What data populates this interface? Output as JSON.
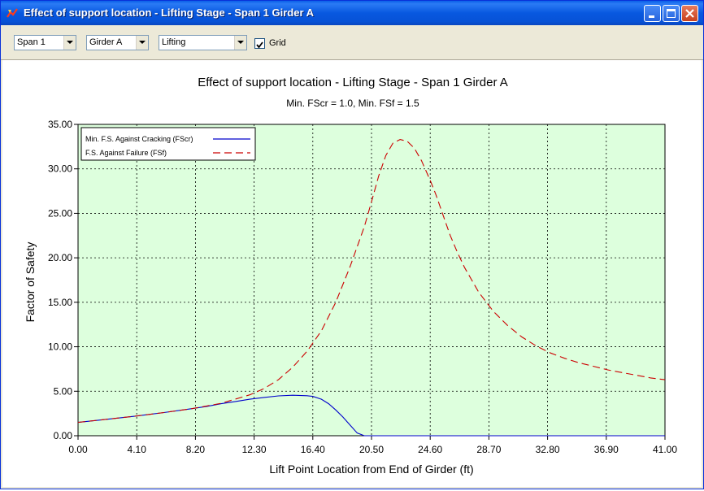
{
  "window": {
    "title": "Effect of support location - Lifting Stage - Span 1 Girder A"
  },
  "toolbar": {
    "span_select": "Span 1",
    "girder_select": "Girder A",
    "stage_select": "Lifting",
    "grid_checked": true,
    "grid_label": "Grid"
  },
  "chart_data": {
    "type": "line",
    "title": "Effect of support location - Lifting Stage - Span 1 Girder A",
    "subtitle": "Min. FScr = 1.0, Min. FSf = 1.5",
    "xlabel": "Lift Point Location from End of Girder (ft)",
    "ylabel": "Factor of Safety",
    "xlim": [
      0,
      41
    ],
    "ylim": [
      0,
      35
    ],
    "x_ticks": [
      "0.00",
      "4.10",
      "8.20",
      "12.30",
      "16.40",
      "20.50",
      "24.60",
      "28.70",
      "32.80",
      "36.90",
      "41.00"
    ],
    "y_ticks": [
      "0.00",
      "5.00",
      "10.00",
      "15.00",
      "20.00",
      "25.00",
      "30.00",
      "35.00"
    ],
    "grid": true,
    "legend_position": "top-left",
    "plot_background": "#ddffdd",
    "series": [
      {
        "name": "Min. F.S. Against Cracking (FScr)",
        "color": "#0000cc",
        "style": "solid",
        "x": [
          0,
          2,
          4,
          6,
          8,
          9,
          10,
          11,
          12,
          13,
          14,
          15,
          16,
          16.4,
          17,
          17.5,
          18,
          18.5,
          19,
          19.5,
          20,
          20.5,
          22,
          24,
          26,
          28,
          30,
          32,
          34,
          36,
          38,
          41
        ],
        "y": [
          1.5,
          1.85,
          2.2,
          2.6,
          3.05,
          3.3,
          3.6,
          3.85,
          4.1,
          4.3,
          4.48,
          4.55,
          4.5,
          4.42,
          4.1,
          3.6,
          2.9,
          2.1,
          1.2,
          0.3,
          0,
          0,
          0,
          0,
          0,
          0,
          0,
          0,
          0,
          0,
          0,
          0
        ]
      },
      {
        "name": "F.S. Against Failure (FSf)",
        "color": "#cc0000",
        "style": "dashed",
        "x": [
          0,
          2,
          4,
          6,
          8,
          10,
          12,
          13,
          14,
          15,
          16,
          17,
          18,
          19,
          20,
          20.5,
          21,
          21.5,
          22,
          22.5,
          23,
          23.5,
          24,
          24.6,
          25,
          25.5,
          26,
          26.5,
          27,
          28,
          29,
          30,
          31,
          32,
          33,
          34,
          35,
          36,
          37,
          38,
          39,
          40,
          41
        ],
        "y": [
          1.5,
          1.85,
          2.2,
          2.6,
          3.05,
          3.65,
          4.6,
          5.3,
          6.3,
          7.7,
          9.5,
          11.8,
          15.0,
          19.0,
          23.5,
          26.3,
          29.2,
          31.5,
          32.9,
          33.3,
          33.1,
          32.3,
          30.9,
          28.7,
          27.1,
          24.8,
          22.5,
          20.6,
          18.9,
          16.1,
          14.0,
          12.4,
          11.1,
          10.1,
          9.3,
          8.7,
          8.2,
          7.8,
          7.4,
          7.1,
          6.8,
          6.5,
          6.3
        ]
      }
    ]
  }
}
